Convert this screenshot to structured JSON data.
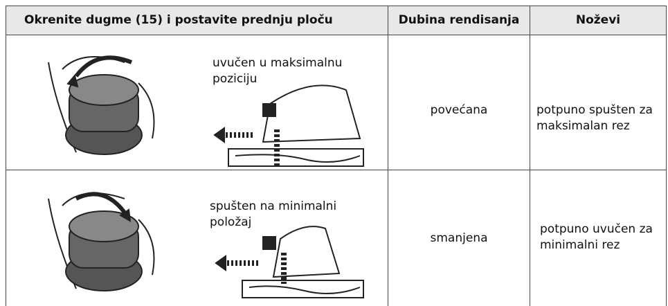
{
  "header": {
    "setting": "Okrenite dugme (15) i postavite prednju ploču",
    "depth": "Dubina rendisanja",
    "blades": "Noževi"
  },
  "rows": [
    {
      "position": "uvučen u maksimalnu poziciju",
      "depth": "povećana",
      "blades": "potpuno spušten za maksimalan rez"
    },
    {
      "position": "spušten na minimalni položaj",
      "depth": "smanjena",
      "blades": "potpuno uvučen za minimalni rez"
    }
  ]
}
